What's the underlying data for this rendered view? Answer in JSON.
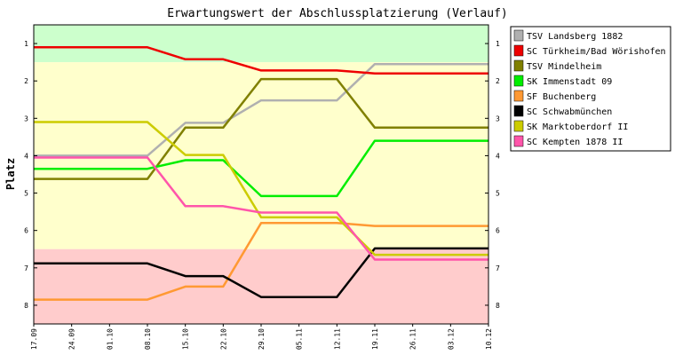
{
  "chart_data": {
    "type": "line",
    "title": "Erwartungswert der Abschlussplatzierung (Verlauf)",
    "ylabel": "Platz",
    "ylim": [
      1,
      8
    ],
    "y_inverted": true,
    "y_ticks": [
      "1",
      "2",
      "3",
      "4",
      "5",
      "6",
      "7",
      "8"
    ],
    "x_ticks": [
      "17.09",
      "24.09",
      "01.10",
      "08.10",
      "15.10",
      "22.10",
      "29.10",
      "05.11",
      "12.11",
      "19.11",
      "26.11",
      "03.12",
      "10.12"
    ],
    "grid": false,
    "legend_position": "right",
    "bands": [
      {
        "from": 0.5,
        "to": 1.5,
        "color": "#ccffcc"
      },
      {
        "from": 1.5,
        "to": 6.5,
        "color": "#ffffcc"
      },
      {
        "from": 6.5,
        "to": 8.5,
        "color": "#ffcccc"
      }
    ],
    "series": [
      {
        "name": "TSV Landsberg 1882",
        "color": "#b0b0b0",
        "values": [
          4.0,
          4.0,
          4.0,
          4.0,
          3.12,
          3.12,
          2.52,
          2.52,
          2.52,
          1.55,
          1.55,
          1.55,
          1.55
        ]
      },
      {
        "name": "SC Türkheim/Bad Wörishofen",
        "color": "#ee0000",
        "values": [
          1.1,
          1.1,
          1.1,
          1.1,
          1.42,
          1.42,
          1.72,
          1.72,
          1.72,
          1.8,
          1.8,
          1.8,
          1.8
        ]
      },
      {
        "name": "TSV Mindelheim",
        "color": "#808000",
        "values": [
          4.62,
          4.62,
          4.62,
          4.62,
          3.25,
          3.25,
          1.95,
          1.95,
          1.95,
          3.25,
          3.25,
          3.25,
          3.25
        ]
      },
      {
        "name": "SK Immenstadt 09",
        "color": "#00ee00",
        "values": [
          4.35,
          4.35,
          4.35,
          4.35,
          4.12,
          4.12,
          5.08,
          5.08,
          5.08,
          3.6,
          3.6,
          3.6,
          3.6
        ]
      },
      {
        "name": "SF Buchenberg",
        "color": "#ff9933",
        "values": [
          7.85,
          7.85,
          7.85,
          7.85,
          7.5,
          7.5,
          5.8,
          5.8,
          5.8,
          5.88,
          5.88,
          5.88,
          5.88
        ]
      },
      {
        "name": "SC Schwabmünchen",
        "color": "#000000",
        "values": [
          6.88,
          6.88,
          6.88,
          6.88,
          7.22,
          7.22,
          7.78,
          7.78,
          7.78,
          6.48,
          6.48,
          6.48,
          6.48
        ]
      },
      {
        "name": "SK Marktoberdorf II",
        "color": "#cccc00",
        "values": [
          3.1,
          3.1,
          3.1,
          3.1,
          3.98,
          3.98,
          5.65,
          5.65,
          5.65,
          6.65,
          6.65,
          6.65,
          6.65
        ]
      },
      {
        "name": "SC Kempten 1878 II",
        "color": "#ff55aa",
        "values": [
          4.05,
          4.05,
          4.05,
          4.05,
          5.35,
          5.35,
          5.52,
          5.52,
          5.52,
          6.78,
          6.78,
          6.78,
          6.78
        ]
      }
    ]
  }
}
